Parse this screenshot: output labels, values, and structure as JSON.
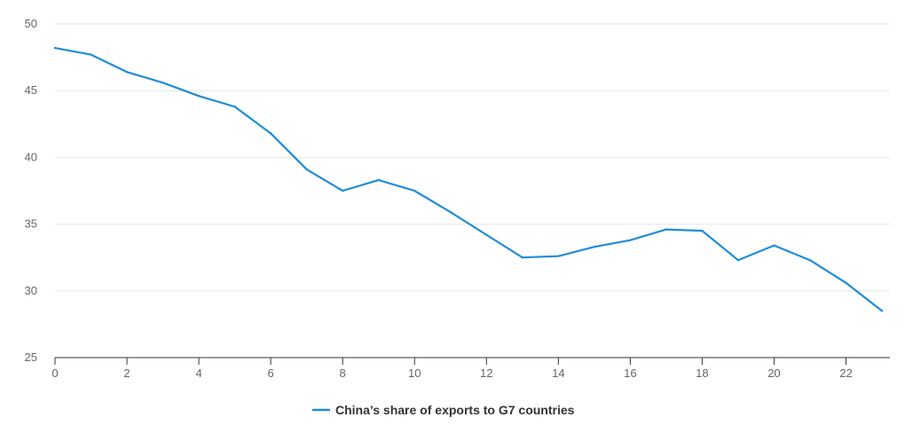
{
  "chart_data": {
    "type": "line",
    "title": "",
    "xlabel": "",
    "ylabel": "",
    "xlim": [
      0,
      23
    ],
    "ylim": [
      25,
      50
    ],
    "x_ticks": [
      0,
      2,
      4,
      6,
      8,
      10,
      12,
      14,
      16,
      18,
      20,
      22
    ],
    "y_ticks": [
      25,
      30,
      35,
      40,
      45,
      50
    ],
    "grid": "horizontal",
    "legend_position": "bottom-center",
    "series": [
      {
        "name": "China’s share of exports to G7 countries",
        "color": "#1f8dd6",
        "x": [
          0,
          1,
          2,
          3,
          4,
          5,
          6,
          7,
          8,
          9,
          10,
          11,
          12,
          13,
          14,
          15,
          16,
          17,
          18,
          19,
          20,
          21,
          22,
          23
        ],
        "values": [
          48.2,
          47.7,
          46.4,
          45.6,
          44.6,
          43.8,
          41.8,
          39.1,
          37.5,
          38.3,
          37.5,
          35.9,
          34.2,
          32.5,
          32.6,
          33.3,
          33.8,
          34.6,
          34.5,
          32.3,
          33.4,
          32.3,
          30.6,
          28.5
        ]
      }
    ]
  }
}
